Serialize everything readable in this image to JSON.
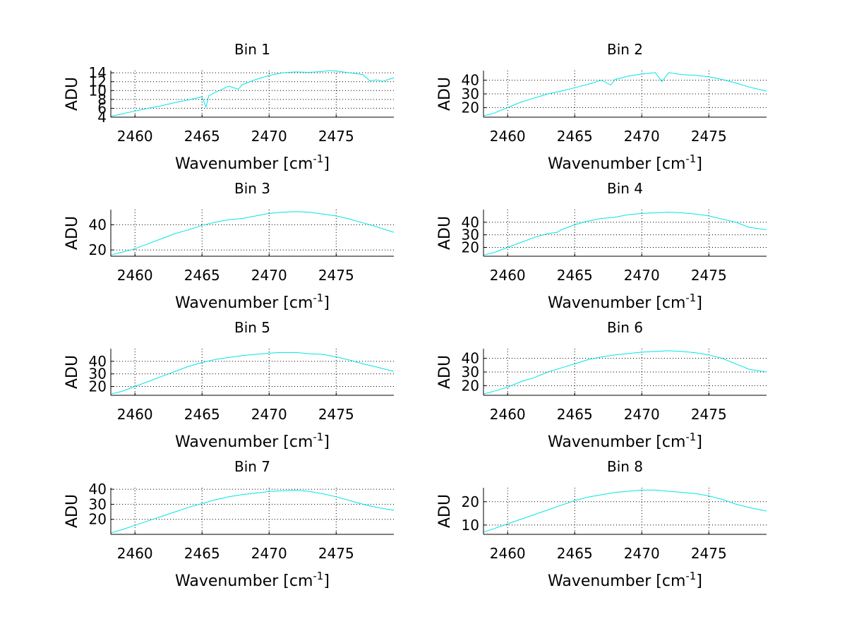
{
  "chart_data": [
    {
      "type": "line",
      "title": "Bin 1",
      "xlabel": "Wavenumber [cm",
      "xlabel_sup": "-1",
      "xlabel_end": "]",
      "ylabel": "ADU",
      "xlim": [
        2458.2,
        2479.3
      ],
      "ylim": [
        4,
        14.5
      ],
      "xticks": [
        2460,
        2465,
        2470,
        2475
      ],
      "yticks": [
        4,
        6,
        8,
        10,
        12,
        14
      ],
      "grid": true,
      "color": "#00e5e5",
      "series": [
        {
          "name": "Bin 1",
          "x": [
            2458.2,
            2459,
            2460,
            2461,
            2462,
            2463,
            2464,
            2465,
            2465.3,
            2465.5,
            2466,
            2467,
            2467.7,
            2468,
            2469,
            2470,
            2471,
            2472,
            2473,
            2474,
            2474.5,
            2475,
            2476,
            2477,
            2477.5,
            2478,
            2478.5,
            2479.3
          ],
          "y": [
            4.2,
            4.7,
            5.4,
            6.0,
            6.6,
            7.3,
            7.9,
            8.6,
            6.3,
            8.8,
            9.6,
            11.0,
            10.3,
            11.3,
            12.5,
            13.4,
            14.0,
            14.2,
            14.1,
            14.3,
            14.5,
            14.4,
            14.0,
            13.6,
            12.2,
            12.4,
            12.1,
            12.9
          ]
        }
      ]
    },
    {
      "type": "line",
      "title": "Bin 2",
      "xlabel": "Wavenumber [cm",
      "xlabel_sup": "-1",
      "xlabel_end": "]",
      "ylabel": "ADU",
      "xlim": [
        2458.2,
        2479.3
      ],
      "ylim": [
        13,
        47
      ],
      "xticks": [
        2460,
        2465,
        2470,
        2475
      ],
      "yticks": [
        20,
        30,
        40
      ],
      "grid": true,
      "color": "#00e5e5",
      "series": [
        {
          "name": "Bin 2",
          "x": [
            2458.2,
            2459,
            2460,
            2461,
            2462,
            2463,
            2464,
            2465,
            2466,
            2467,
            2467.7,
            2468,
            2469,
            2470,
            2471,
            2471.5,
            2472,
            2473,
            2474,
            2475,
            2476,
            2477,
            2478,
            2479.3
          ],
          "y": [
            14,
            16,
            20,
            24,
            27,
            30,
            32,
            34.5,
            37,
            40,
            36.5,
            40.5,
            43,
            44.5,
            45.5,
            39,
            45.5,
            44,
            43.5,
            42.5,
            40.5,
            38,
            35,
            32
          ]
        }
      ]
    },
    {
      "type": "line",
      "title": "Bin 3",
      "xlabel": "Wavenumber [cm",
      "xlabel_sup": "-1",
      "xlabel_end": "]",
      "ylabel": "ADU",
      "xlim": [
        2458.2,
        2479.3
      ],
      "ylim": [
        15,
        52
      ],
      "xticks": [
        2460,
        2465,
        2470,
        2475
      ],
      "yticks": [
        20,
        40
      ],
      "grid": true,
      "color": "#00e5e5",
      "series": [
        {
          "name": "Bin 3",
          "x": [
            2458.2,
            2459,
            2460,
            2461,
            2462,
            2463,
            2464,
            2465,
            2466,
            2467,
            2468,
            2469,
            2470,
            2471,
            2472,
            2473,
            2474,
            2475,
            2476,
            2477,
            2478,
            2479.3
          ],
          "y": [
            16,
            18,
            21,
            25,
            29,
            33,
            36,
            39.5,
            42,
            44,
            45,
            47,
            49,
            50,
            50.5,
            50,
            48.5,
            47,
            44.5,
            41.5,
            38.5,
            34
          ]
        }
      ]
    },
    {
      "type": "line",
      "title": "Bin 4",
      "xlabel": "Wavenumber [cm",
      "xlabel_sup": "-1",
      "xlabel_end": "]",
      "ylabel": "ADU",
      "xlim": [
        2458.2,
        2479.3
      ],
      "ylim": [
        13,
        50
      ],
      "xticks": [
        2460,
        2465,
        2470,
        2475
      ],
      "yticks": [
        20,
        30,
        40
      ],
      "grid": true,
      "color": "#00e5e5",
      "series": [
        {
          "name": "Bin 4",
          "x": [
            2458.2,
            2459,
            2460,
            2461,
            2462,
            2463,
            2463.7,
            2464,
            2465,
            2466,
            2467,
            2468,
            2469,
            2470,
            2471,
            2472,
            2473,
            2474,
            2475,
            2476,
            2477,
            2478,
            2479.3
          ],
          "y": [
            14,
            16,
            20,
            24,
            28,
            31,
            32,
            34,
            38,
            41,
            43,
            44,
            46,
            47,
            47.5,
            48,
            47.5,
            46.5,
            45,
            42.5,
            40,
            36,
            34
          ]
        }
      ]
    },
    {
      "type": "line",
      "title": "Bin 5",
      "xlabel": "Wavenumber [cm",
      "xlabel_sup": "-1",
      "xlabel_end": "]",
      "ylabel": "ADU",
      "xlim": [
        2458.2,
        2479.3
      ],
      "ylim": [
        13,
        50
      ],
      "xticks": [
        2460,
        2465,
        2470,
        2475
      ],
      "yticks": [
        20,
        30,
        40
      ],
      "grid": true,
      "color": "#00e5e5",
      "series": [
        {
          "name": "Bin 5",
          "x": [
            2458.2,
            2459,
            2460,
            2461,
            2462,
            2463,
            2464,
            2465,
            2466,
            2467,
            2468,
            2469,
            2470,
            2471,
            2472,
            2473,
            2474,
            2475,
            2476,
            2477,
            2478,
            2479.3
          ],
          "y": [
            14,
            16,
            20,
            24,
            28,
            32,
            36,
            39,
            41.5,
            43,
            44.5,
            45.5,
            46.5,
            47,
            47,
            46,
            45.5,
            43.5,
            41,
            38,
            35.5,
            32
          ]
        }
      ]
    },
    {
      "type": "line",
      "title": "Bin 6",
      "xlabel": "Wavenumber [cm",
      "xlabel_sup": "-1",
      "xlabel_end": "]",
      "ylabel": "ADU",
      "xlim": [
        2458.2,
        2479.3
      ],
      "ylim": [
        13,
        47
      ],
      "xticks": [
        2460,
        2465,
        2470,
        2475
      ],
      "yticks": [
        20,
        30,
        40
      ],
      "grid": true,
      "color": "#00e5e5",
      "series": [
        {
          "name": "Bin 6",
          "x": [
            2458.2,
            2459,
            2460,
            2461,
            2462,
            2463,
            2464,
            2465,
            2466,
            2467,
            2468,
            2469,
            2470,
            2471,
            2472,
            2473,
            2474,
            2475,
            2476,
            2477,
            2478,
            2479.3
          ],
          "y": [
            14,
            16,
            19,
            23,
            26,
            30,
            33,
            36,
            39,
            41,
            42.5,
            43.5,
            44.5,
            45,
            45.5,
            45,
            44,
            42.5,
            40,
            36,
            32,
            30
          ]
        }
      ]
    },
    {
      "type": "line",
      "title": "Bin 7",
      "xlabel": "Wavenumber [cm",
      "xlabel_sup": "-1",
      "xlabel_end": "]",
      "ylabel": "ADU",
      "xlim": [
        2458.2,
        2479.3
      ],
      "ylim": [
        10,
        41
      ],
      "xticks": [
        2460,
        2465,
        2470,
        2475
      ],
      "yticks": [
        20,
        30,
        40
      ],
      "grid": true,
      "color": "#00e5e5",
      "series": [
        {
          "name": "Bin 7",
          "x": [
            2458.2,
            2459,
            2460,
            2461,
            2462,
            2463,
            2464,
            2465,
            2466,
            2467,
            2468,
            2469,
            2470,
            2471,
            2472,
            2473,
            2474,
            2475,
            2476,
            2477,
            2478,
            2479.3
          ],
          "y": [
            11,
            13,
            16,
            19,
            22,
            25,
            28,
            30.5,
            33,
            35,
            36.5,
            37.5,
            38.5,
            39,
            39.5,
            38.5,
            37,
            35,
            32.5,
            30,
            28,
            26
          ]
        }
      ]
    },
    {
      "type": "line",
      "title": "Bin 8",
      "xlabel": "Wavenumber [cm",
      "xlabel_sup": "-1",
      "xlabel_end": "]",
      "ylabel": "ADU",
      "xlim": [
        2458.2,
        2479.3
      ],
      "ylim": [
        6,
        26
      ],
      "xticks": [
        2460,
        2465,
        2470,
        2475
      ],
      "yticks": [
        10,
        20
      ],
      "grid": true,
      "color": "#00e5e5",
      "series": [
        {
          "name": "Bin 8",
          "x": [
            2458.2,
            2459,
            2460,
            2461,
            2462,
            2463,
            2464,
            2465,
            2466,
            2467,
            2468,
            2469,
            2470,
            2471,
            2472,
            2473,
            2474,
            2475,
            2476,
            2477,
            2478,
            2479.3
          ],
          "y": [
            7,
            8.5,
            10.5,
            12.5,
            14.5,
            16.5,
            18.5,
            20.5,
            22,
            23,
            24,
            24.5,
            25,
            25,
            24.5,
            24,
            23.5,
            22.5,
            21,
            19,
            17.5,
            16
          ]
        }
      ]
    }
  ]
}
